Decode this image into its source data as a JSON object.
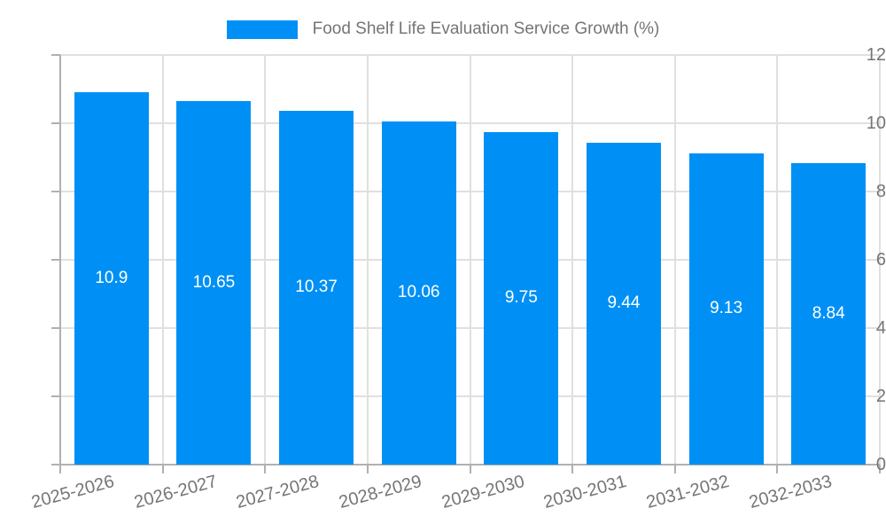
{
  "legend": {
    "label": "Food Shelf Life Evaluation Service Growth (%)"
  },
  "chart_data": {
    "type": "bar",
    "title": "Food Shelf Life Evaluation Service Growth (%)",
    "categories": [
      "2025-2026",
      "2026-2027",
      "2027-2028",
      "2028-2029",
      "2029-2030",
      "2030-2031",
      "2031-2032",
      "2032-2033"
    ],
    "values": [
      10.9,
      10.65,
      10.37,
      10.06,
      9.75,
      9.44,
      9.13,
      8.84
    ],
    "value_labels": [
      "10.9",
      "10.65",
      "10.37",
      "10.06",
      "9.75",
      "9.44",
      "9.13",
      "8.84"
    ],
    "xlabel": "",
    "ylabel": "",
    "ylim": [
      0,
      12
    ],
    "yticks": [
      0,
      2,
      4,
      6,
      8,
      10,
      12
    ],
    "grid": true,
    "legend_position": "top-center",
    "x_label_rotation_deg": -15,
    "colors": {
      "bar": "#0090F5",
      "bar_value_text": "#FFFFFF",
      "axis_text": "#757575",
      "grid_line": "#E0E0E0",
      "axis_line": "#B0B0B0",
      "background": "#FFFFFF"
    }
  }
}
